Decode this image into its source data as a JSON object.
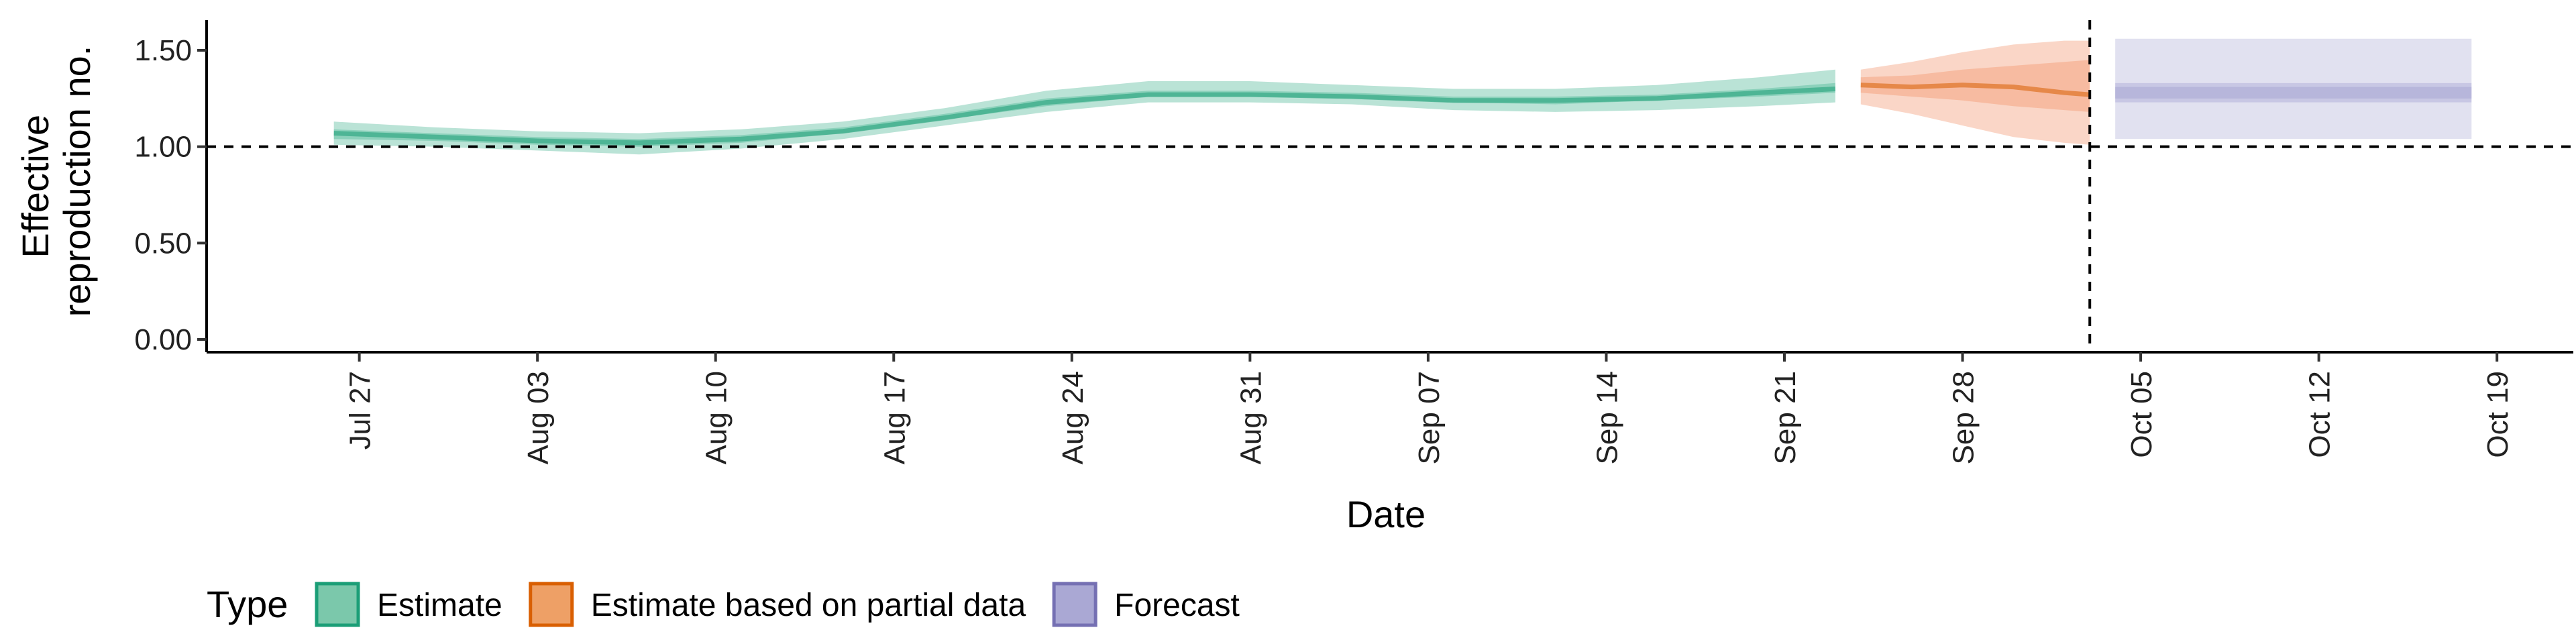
{
  "chart_data": {
    "type": "area",
    "xlabel": "Date",
    "ylabel_lines": [
      "Effective",
      "reproduction no."
    ],
    "ylim": [
      0,
      1.6
    ],
    "y_ticks": [
      0.0,
      0.5,
      1.0,
      1.5
    ],
    "y_tick_labels": [
      "0.00",
      "0.50",
      "1.00",
      "1.50"
    ],
    "xlim": [
      "2020-07-21",
      "2020-10-22"
    ],
    "x_tick_dates": [
      "2020-07-27",
      "2020-08-03",
      "2020-08-10",
      "2020-08-17",
      "2020-08-24",
      "2020-08-31",
      "2020-09-07",
      "2020-09-14",
      "2020-09-21",
      "2020-09-28",
      "2020-10-05",
      "2020-10-12",
      "2020-10-19"
    ],
    "x_tick_labels": [
      "Jul 27",
      "Aug 03",
      "Aug 10",
      "Aug 17",
      "Aug 24",
      "Aug 31",
      "Sep 07",
      "Sep 14",
      "Sep 21",
      "Sep 28",
      "Oct 05",
      "Oct 12",
      "Oct 19"
    ],
    "reference_line_y": 1.0,
    "reference_line_x": "2020-10-03",
    "series": [
      {
        "name": "Estimate",
        "color": "#1b9e77",
        "fill": "#66c2a5",
        "x": [
          "2020-07-26",
          "2020-07-30",
          "2020-08-03",
          "2020-08-07",
          "2020-08-11",
          "2020-08-15",
          "2020-08-19",
          "2020-08-23",
          "2020-08-27",
          "2020-08-31",
          "2020-09-04",
          "2020-09-08",
          "2020-09-12",
          "2020-09-16",
          "2020-09-20",
          "2020-09-23"
        ],
        "median": [
          1.07,
          1.05,
          1.03,
          1.02,
          1.04,
          1.08,
          1.15,
          1.23,
          1.27,
          1.27,
          1.26,
          1.24,
          1.24,
          1.25,
          1.28,
          1.3
        ],
        "lower_50": [
          1.04,
          1.03,
          1.01,
          1.0,
          1.02,
          1.07,
          1.14,
          1.21,
          1.26,
          1.26,
          1.25,
          1.23,
          1.22,
          1.24,
          1.26,
          1.28
        ],
        "upper_50": [
          1.09,
          1.07,
          1.05,
          1.04,
          1.06,
          1.1,
          1.17,
          1.25,
          1.29,
          1.29,
          1.28,
          1.26,
          1.26,
          1.27,
          1.3,
          1.33
        ],
        "lower_90": [
          1.01,
          1.0,
          0.98,
          0.96,
          0.99,
          1.04,
          1.11,
          1.18,
          1.23,
          1.23,
          1.22,
          1.19,
          1.18,
          1.19,
          1.21,
          1.23
        ],
        "upper_90": [
          1.13,
          1.1,
          1.08,
          1.07,
          1.09,
          1.13,
          1.2,
          1.29,
          1.34,
          1.34,
          1.32,
          1.3,
          1.3,
          1.32,
          1.36,
          1.4
        ]
      },
      {
        "name": "Estimate based on partial data",
        "color": "#d95f02",
        "fill": "#f4a582",
        "x": [
          "2020-09-24",
          "2020-09-26",
          "2020-09-28",
          "2020-09-30",
          "2020-10-02",
          "2020-10-03"
        ],
        "median": [
          1.32,
          1.31,
          1.32,
          1.31,
          1.28,
          1.27
        ],
        "lower_50": [
          1.28,
          1.26,
          1.24,
          1.21,
          1.19,
          1.18
        ],
        "upper_50": [
          1.36,
          1.37,
          1.4,
          1.42,
          1.44,
          1.45
        ],
        "lower_90": [
          1.22,
          1.17,
          1.11,
          1.05,
          1.02,
          1.01
        ],
        "upper_90": [
          1.4,
          1.44,
          1.49,
          1.53,
          1.55,
          1.55
        ]
      },
      {
        "name": "Forecast",
        "color": "#7570b3",
        "fill": "#aaa8d4",
        "x": [
          "2020-10-04",
          "2020-10-18"
        ],
        "median": [
          1.28,
          1.28
        ],
        "lower_50": [
          1.23,
          1.23
        ],
        "upper_50": [
          1.33,
          1.33
        ],
        "lower_30": [
          1.25,
          1.25
        ],
        "upper_30": [
          1.31,
          1.31
        ],
        "lower_90": [
          1.04,
          1.04
        ],
        "upper_90": [
          1.56,
          1.56
        ]
      }
    ],
    "legend": {
      "title": "Type",
      "position": "bottom-left",
      "items": [
        {
          "label": "Estimate",
          "fill": "#7bc8ab",
          "border": "#1b9e77"
        },
        {
          "label": "Estimate based on partial data",
          "fill": "#eea066",
          "border": "#d95f02"
        },
        {
          "label": "Forecast",
          "fill": "#aaa8d4",
          "border": "#7570b3"
        }
      ]
    }
  }
}
